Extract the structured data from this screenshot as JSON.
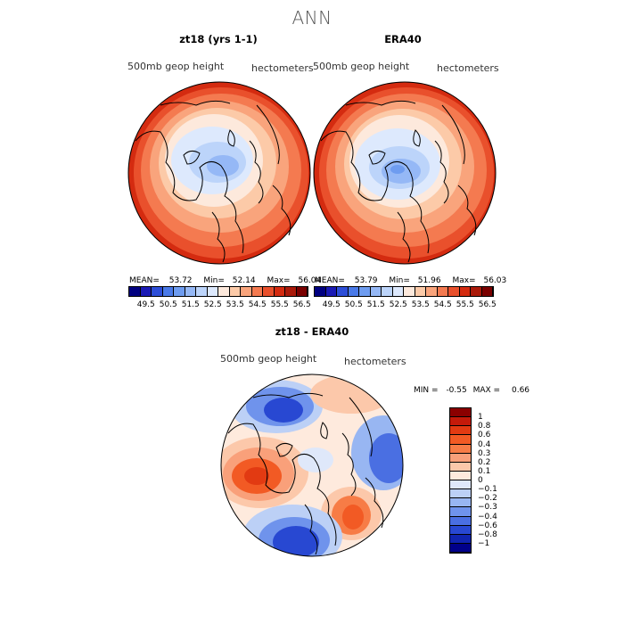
{
  "figure": {
    "title": "ANN"
  },
  "chart_data": [
    {
      "type": "heatmap",
      "subtype": "polar-stereographic contour map",
      "title": "zt18 (yrs 1-1)",
      "field_label": "500mb geop height",
      "units_label": "hectometers",
      "stats": {
        "mean_label": "MEAN=",
        "mean": "53.72",
        "min_label": "Min=",
        "min": "52.14",
        "max_label": "Max=",
        "max": "56.04"
      },
      "levels": [
        "49.5",
        "50.5",
        "51.5",
        "52.5",
        "53.5",
        "54.5",
        "55.5",
        "56.5"
      ],
      "colors": [
        "#000080",
        "#1a1ab4",
        "#2d4ed8",
        "#4a7ae8",
        "#6e9cf0",
        "#95b8f6",
        "#bcd4fa",
        "#dde9fd",
        "#fde9dc",
        "#fccaa8",
        "#f9a47c",
        "#f47a50",
        "#e9502c",
        "#d42b10",
        "#aa1a0a",
        "#7a0000"
      ]
    },
    {
      "type": "heatmap",
      "subtype": "polar-stereographic contour map",
      "title": "ERA40",
      "field_label": "500mb geop height",
      "units_label": "hectometers",
      "stats": {
        "mean_label": "MEAN=",
        "mean": "53.79",
        "min_label": "Min=",
        "min": "51.96",
        "max_label": "Max=",
        "max": "56.03"
      },
      "levels": [
        "49.5",
        "50.5",
        "51.5",
        "52.5",
        "53.5",
        "54.5",
        "55.5",
        "56.5"
      ],
      "colors": [
        "#000080",
        "#1a1ab4",
        "#2d4ed8",
        "#4a7ae8",
        "#6e9cf0",
        "#95b8f6",
        "#bcd4fa",
        "#dde9fd",
        "#fde9dc",
        "#fccaa8",
        "#f9a47c",
        "#f47a50",
        "#e9502c",
        "#d42b10",
        "#aa1a0a",
        "#7a0000"
      ]
    },
    {
      "type": "heatmap",
      "subtype": "polar-stereographic difference map",
      "title": "zt18 - ERA40",
      "field_label": "500mb geop height",
      "units_label": "hectometers",
      "stats": {
        "min_label": "MIN =",
        "min": "-0.55",
        "max_label": "MAX =",
        "max": "0.66"
      },
      "levels": [
        "1",
        "0.8",
        "0.6",
        "0.4",
        "0.3",
        "0.2",
        "0.1",
        "0",
        "−0.1",
        "−0.2",
        "−0.3",
        "−0.4",
        "−0.6",
        "−0.8",
        "−1"
      ],
      "colors": [
        "#8b0000",
        "#c41a0a",
        "#e23a12",
        "#f25a24",
        "#f77c46",
        "#f9a07a",
        "#fcc8aa",
        "#feeadd",
        "#dfe8fa",
        "#bcd0f6",
        "#98b6f2",
        "#6f93ec",
        "#4a6fe2",
        "#2848d2",
        "#1024b0",
        "#00008a"
      ]
    }
  ]
}
